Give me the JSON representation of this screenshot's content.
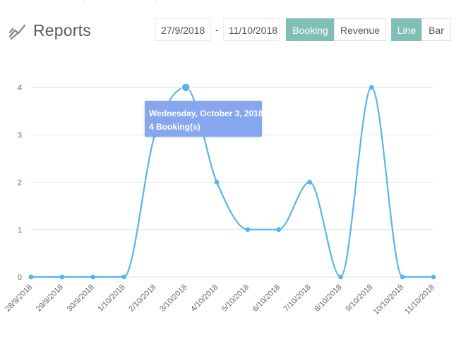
{
  "header": {
    "title": "Reports",
    "title_icon": "line-chart-icon",
    "date_from": "27/9/2018",
    "date_separator": "-",
    "date_to": "11/10/2018",
    "metric_buttons": [
      {
        "label": "Booking",
        "active": true
      },
      {
        "label": "Revenue",
        "active": false
      }
    ],
    "type_buttons": [
      {
        "label": "Line",
        "active": true
      },
      {
        "label": "Bar",
        "active": false
      }
    ]
  },
  "tooltip": {
    "date": "Wednesday, October 3, 2018",
    "value_text": "4 Booking(s)"
  },
  "colors": {
    "accent": "#7fbfb6",
    "line": "#5ab4ec",
    "tooltip": "#86a7ee",
    "grid": "#e2e2e2"
  },
  "chart_data": {
    "type": "line",
    "categories": [
      "28/9/2018",
      "29/9/2018",
      "30/9/2018",
      "1/10/2018",
      "2/10/2018",
      "3/10/2018",
      "4/10/2018",
      "5/10/2018",
      "6/10/2018",
      "7/10/2018",
      "8/10/2018",
      "9/10/2018",
      "10/10/2018",
      "11/10/2018"
    ],
    "values": [
      0,
      0,
      0,
      0,
      3,
      4,
      2,
      1,
      1,
      2,
      0,
      4,
      0,
      0
    ],
    "y_ticks": [
      "0",
      "1",
      "2",
      "3",
      "4"
    ],
    "ylim": [
      0,
      4
    ],
    "highlighted_index": 5,
    "grid": true,
    "legend": "none"
  }
}
